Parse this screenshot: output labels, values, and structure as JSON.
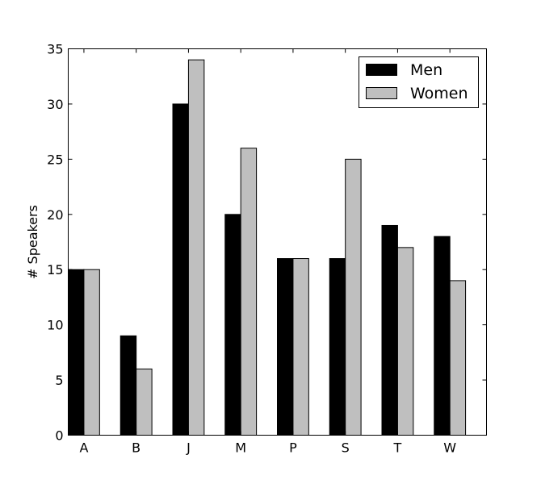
{
  "chart_data": {
    "type": "bar",
    "title": "",
    "xlabel": "",
    "ylabel": "# Speakers",
    "categories": [
      "A",
      "B",
      "J",
      "M",
      "P",
      "S",
      "T",
      "W"
    ],
    "series": [
      {
        "name": "Men",
        "color": "#000000",
        "values": [
          15,
          9,
          30,
          20,
          16,
          16,
          19,
          18
        ]
      },
      {
        "name": "Women",
        "color": "#bfbfbf",
        "values": [
          15,
          6,
          34,
          26,
          16,
          25,
          17,
          14
        ]
      }
    ],
    "ylim": [
      0,
      35
    ],
    "yticks": [
      0,
      5,
      10,
      15,
      20,
      25,
      30,
      35
    ],
    "grid": false,
    "legend_position": "top-right"
  }
}
